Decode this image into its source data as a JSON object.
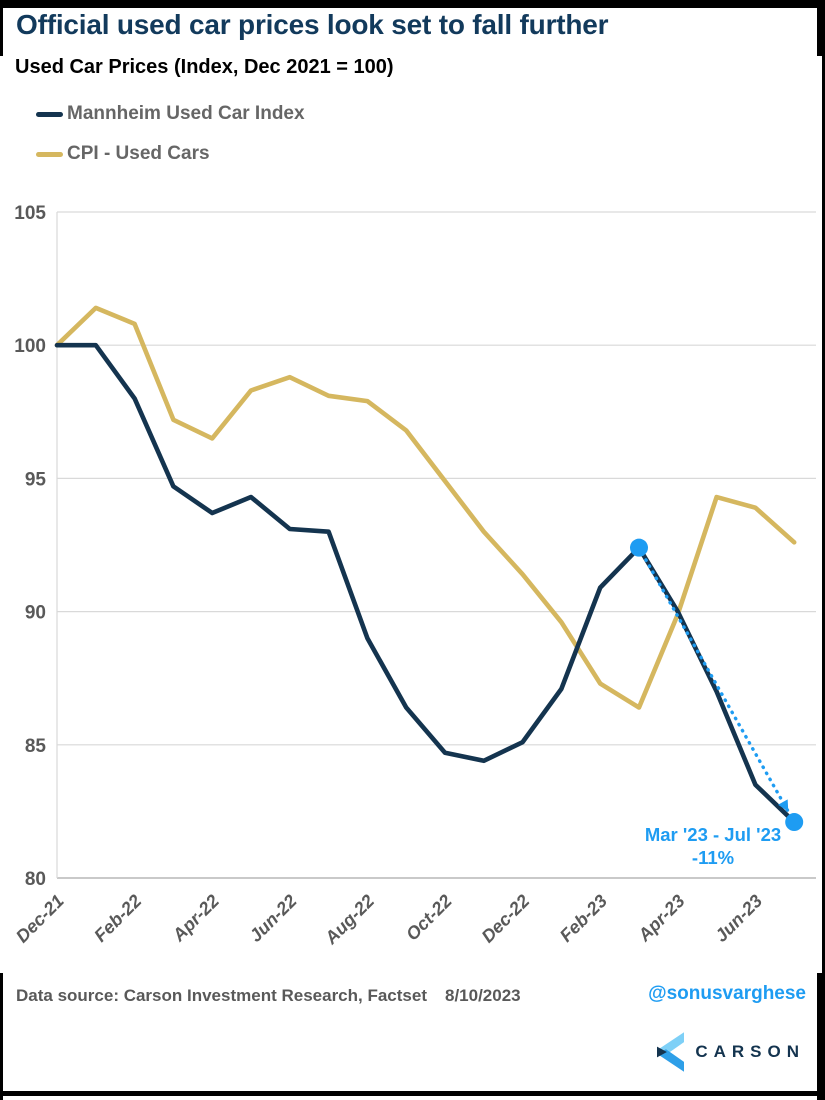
{
  "header": {
    "title": "Official used car prices look set to fall further",
    "subtitle": "Used Car Prices (Index, Dec 2021 = 100)"
  },
  "legend": {
    "items": [
      {
        "label": "Mannheim Used Car Index",
        "color": "#14344f"
      },
      {
        "label": "CPI - Used Cars",
        "color": "#d5b75f"
      }
    ]
  },
  "chart_data": {
    "type": "line",
    "title": "Used Car Prices (Index, Dec 2021 = 100)",
    "categories": [
      "Dec-21",
      "Jan-22",
      "Feb-22",
      "Mar-22",
      "Apr-22",
      "May-22",
      "Jun-22",
      "Jul-22",
      "Aug-22",
      "Sep-22",
      "Oct-22",
      "Nov-22",
      "Dec-22",
      "Jan-23",
      "Feb-23",
      "Mar-23",
      "Apr-23",
      "May-23",
      "Jun-23",
      "Jul-23"
    ],
    "series": [
      {
        "name": "Mannheim Used Car Index",
        "color": "#14344f",
        "values": [
          100.0,
          100.0,
          98.0,
          94.7,
          93.7,
          94.3,
          93.1,
          93.0,
          89.0,
          86.4,
          84.7,
          84.4,
          85.1,
          87.1,
          90.9,
          92.4,
          90.0,
          87.0,
          83.5,
          82.1
        ]
      },
      {
        "name": "CPI - Used Cars",
        "color": "#d5b75f",
        "values": [
          100.0,
          101.4,
          100.8,
          97.2,
          96.5,
          98.3,
          98.8,
          98.1,
          97.9,
          96.8,
          94.9,
          93.0,
          91.4,
          89.6,
          87.3,
          86.4,
          89.9,
          94.3,
          93.9,
          92.6
        ]
      }
    ],
    "ylim": [
      80,
      105
    ],
    "yticks": [
      105,
      100,
      95,
      90,
      85,
      80
    ],
    "xtick_labels": [
      "Dec-21",
      "Feb-22",
      "Apr-22",
      "Jun-22",
      "Aug-22",
      "Oct-22",
      "Dec-22",
      "Feb-23",
      "Apr-23",
      "Jun-23"
    ],
    "grid": "horizontal",
    "legend_position": "top-left",
    "grid_color": "#d9d9d9",
    "axis_color": "#b7b7b7",
    "tick_color": "#595959",
    "annotation": {
      "line1": "Mar '23 - Jul '23",
      "line2": "-11%",
      "start_index": 15,
      "end_index": 19,
      "color": "#1e9cf2"
    }
  },
  "footer": {
    "source": "Data source: Carson Investment Research, Factset",
    "date": "8/10/2023",
    "handle": "@sonusvarghese",
    "brand": "CARSON"
  }
}
